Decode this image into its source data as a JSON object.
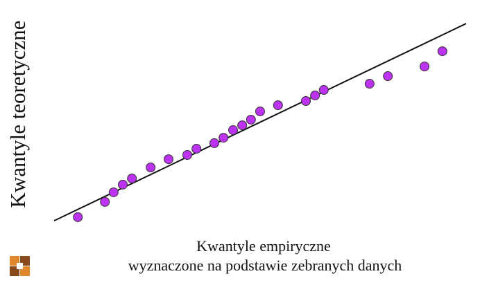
{
  "chart_data": {
    "type": "scatter",
    "ylabel": "Kwantyle teoretyczne",
    "xlabel": [
      "Kwantyle empiryczne",
      "wyznaczone na podstawie zebranych danych"
    ],
    "x": [
      6.2,
      12.7,
      14.8,
      17,
      19.2,
      23.7,
      28,
      32.5,
      34.7,
      39,
      41.2,
      43.5,
      45.7,
      47.8,
      50,
      54.3,
      61,
      63.2,
      65.3,
      76.3,
      80.7,
      89.5,
      93.8
    ],
    "values": [
      2.1,
      9.7,
      14.5,
      18.3,
      21.4,
      26.9,
      31,
      33.1,
      36.2,
      39,
      41.7,
      45.5,
      47.9,
      50.7,
      54.8,
      57.9,
      60,
      62.8,
      65.5,
      68.6,
      72.4,
      77.2,
      84.8
    ],
    "color": "#bb33ee",
    "line": {
      "x": [
        0.5,
        99.5
      ],
      "y": [
        0.3,
        98.6
      ],
      "color": "#111111"
    },
    "xlim": [
      0,
      100
    ],
    "ylim": [
      0,
      100
    ]
  }
}
